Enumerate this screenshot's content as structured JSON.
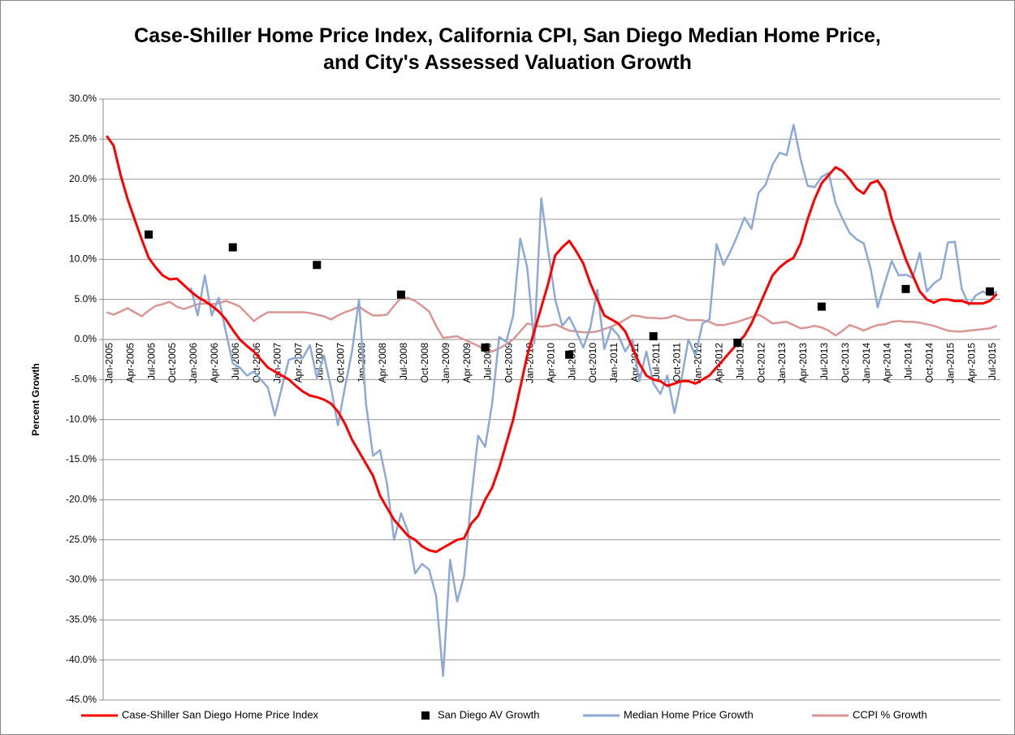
{
  "chart_data": {
    "type": "line",
    "title": "Case-Shiller Home Price Index, California CPI, San Diego Median Home Price, and City's Assessed Valuation Growth",
    "ylabel": "Percent Growth",
    "categories": [
      "Jan-2005",
      null,
      null,
      "Apr-2005",
      null,
      null,
      "Jul-2005",
      null,
      null,
      "Oct-2005",
      null,
      null,
      "Jan-2006",
      null,
      null,
      "Apr-2006",
      null,
      null,
      "Jul-2006",
      null,
      null,
      "Oct-2006",
      null,
      null,
      "Jan-2007",
      null,
      null,
      "Apr-2007",
      null,
      null,
      "Jul-2007",
      null,
      null,
      "Oct-2007",
      null,
      null,
      "Jan-2008",
      null,
      null,
      "Apr-2008",
      null,
      null,
      "Jul-2008",
      null,
      null,
      "Oct-2008",
      null,
      null,
      "Jan-2009",
      null,
      null,
      "Apr-2009",
      null,
      null,
      "Jul-2009",
      null,
      null,
      "Oct-2009",
      null,
      null,
      "Jan-2010",
      null,
      null,
      "Apr-2010",
      null,
      null,
      "Jul-2010",
      null,
      null,
      "Oct-2010",
      null,
      null,
      "Jan-2011",
      null,
      null,
      "Apr-2011",
      null,
      null,
      "Jul-2011",
      null,
      null,
      "Oct-2011",
      null,
      null,
      "Jan-2012",
      null,
      null,
      "Apr-2012",
      null,
      null,
      "Jul-2012",
      null,
      null,
      "Oct-2012",
      null,
      null,
      "Jan-2013",
      null,
      null,
      "Apr-2013",
      null,
      null,
      "Jul-2013",
      null,
      null,
      "Oct-2013",
      null,
      null,
      "Jan-2014",
      null,
      null,
      "Apr-2014",
      null,
      null,
      "Jul-2014",
      null,
      null,
      "Oct-2014",
      null,
      null,
      "Jan-2015",
      null,
      null,
      "Apr-2015",
      null,
      null,
      "Jul-2015",
      null
    ],
    "series": [
      {
        "name": "Case-Shiller San Diego Home Price Index",
        "color": "#ff0000",
        "kind": "line",
        "values": [
          25.4,
          24.2,
          20.5,
          17.5,
          15,
          12.5,
          10.2,
          9,
          8,
          7.5,
          7.6,
          6.8,
          6,
          5.3,
          4.8,
          4.2,
          3.5,
          2.5,
          1.2,
          0,
          -0.8,
          -1.5,
          -2.5,
          -3.5,
          -4,
          -4.5,
          -5,
          -5.8,
          -6.5,
          -7,
          -7.2,
          -7.5,
          -8,
          -9,
          -10.5,
          -12.5,
          -14,
          -15.5,
          -17,
          -19.5,
          -21,
          -22.5,
          -23.5,
          -24.5,
          -25,
          -25.8,
          -26.3,
          -26.5,
          -26,
          -25.5,
          -25,
          -24.8,
          -23,
          -22,
          -20,
          -18.5,
          -16,
          -13,
          -10,
          -6,
          -2,
          1,
          4,
          7,
          10.5,
          11.5,
          12.3,
          11,
          9.5,
          7,
          5,
          3,
          2.5,
          2,
          1,
          -1,
          -3,
          -4.5,
          -5,
          -5.2,
          -5.8,
          -5.5,
          -5.2,
          -5.2,
          -5.5,
          -5,
          -4.5,
          -3.5,
          -2.5,
          -1.5,
          -0.5,
          0.5,
          2,
          4,
          6,
          8,
          9,
          9.7,
          10.2,
          12,
          15,
          17.5,
          19.5,
          20.5,
          21.5,
          21,
          20,
          18.8,
          18.2,
          19.5,
          19.8,
          18.5,
          15,
          12.5,
          10,
          8,
          6,
          5,
          4.6,
          5,
          5,
          4.8,
          4.8,
          4.5,
          4.5,
          4.5,
          4.8,
          5.7
        ]
      },
      {
        "name": "San Diego AV Growth",
        "color": "#000000",
        "kind": "scatter",
        "values": [
          null,
          null,
          null,
          null,
          null,
          null,
          13.1,
          null,
          null,
          null,
          null,
          null,
          null,
          null,
          null,
          null,
          null,
          null,
          11.5,
          null,
          null,
          null,
          null,
          null,
          null,
          null,
          null,
          null,
          null,
          null,
          9.3,
          null,
          null,
          null,
          null,
          null,
          null,
          null,
          null,
          null,
          null,
          null,
          5.6,
          null,
          null,
          null,
          null,
          null,
          null,
          null,
          null,
          null,
          null,
          null,
          -1,
          null,
          null,
          null,
          null,
          null,
          null,
          null,
          null,
          null,
          null,
          null,
          -1.9,
          null,
          null,
          null,
          null,
          null,
          null,
          null,
          null,
          null,
          null,
          null,
          0.4,
          null,
          null,
          null,
          null,
          null,
          null,
          null,
          null,
          null,
          null,
          null,
          -0.4,
          null,
          null,
          null,
          null,
          null,
          null,
          null,
          null,
          null,
          null,
          null,
          4.1,
          null,
          null,
          null,
          null,
          null,
          null,
          null,
          null,
          null,
          null,
          null,
          6.3,
          null,
          null,
          null,
          null,
          null,
          null,
          null,
          null,
          null,
          null,
          null,
          6,
          null
        ]
      },
      {
        "name": "Median Home Price Growth",
        "color": "#8eaad4",
        "kind": "line",
        "values": [
          null,
          null,
          null,
          null,
          null,
          null,
          null,
          null,
          null,
          null,
          null,
          null,
          6.5,
          3,
          8,
          3,
          5.2,
          1,
          -3,
          -3.5,
          -4.5,
          -4,
          -5,
          -6,
          -9.5,
          -6,
          -2.5,
          -2.3,
          -2.3,
          -0.7,
          -4.8,
          -2,
          -6,
          -10.7,
          -6,
          -1.5,
          5,
          -8,
          -14.5,
          -13.8,
          -18,
          -25,
          -21.7,
          -24,
          -29.2,
          -28,
          -28.7,
          -32,
          -42,
          -27.5,
          -32.7,
          -29.5,
          -20,
          -12,
          -13.4,
          -8,
          0.3,
          -0.3,
          3,
          12.6,
          9,
          -0.5,
          17.6,
          11,
          5,
          1.7,
          2.8,
          1,
          -1,
          1.5,
          6.2,
          -1.2,
          1.5,
          0.5,
          -1.5,
          0,
          -5.2,
          -1.5,
          -5.5,
          -6.8,
          -4.5,
          -9.2,
          -5,
          0,
          -2,
          2,
          2.5,
          11.9,
          9.3,
          11,
          13,
          15.2,
          13.8,
          18.3,
          19.3,
          21.8,
          23.3,
          23,
          26.8,
          22.5,
          19.2,
          19,
          20.3,
          20.8,
          17,
          15,
          13.3,
          12.5,
          12,
          8.8,
          4,
          7,
          9.8,
          8,
          8.1,
          7.7,
          10.8,
          6,
          7,
          7.6,
          12.1,
          12.2,
          6.3,
          4.3,
          5.5,
          6,
          5.5,
          6
        ]
      },
      {
        "name": "CCPI % Growth",
        "color": "#d99694",
        "kind": "line",
        "values": [
          3.4,
          3.1,
          3.5,
          3.9,
          3.4,
          2.9,
          3.6,
          4.2,
          4.4,
          4.7,
          4.1,
          3.8,
          4.1,
          4.4,
          4.5,
          4.4,
          4.5,
          4.8,
          4.5,
          4.1,
          3.2,
          2.3,
          2.9,
          3.4,
          3.4,
          3.4,
          3.4,
          3.4,
          3.4,
          3.3,
          3.1,
          2.9,
          2.5,
          3,
          3.4,
          3.7,
          4.1,
          3.5,
          3,
          3,
          3.1,
          4.2,
          5.2,
          5.2,
          4.8,
          4.2,
          3.5,
          1.7,
          0.2,
          0.3,
          0.4,
          0,
          -0.4,
          -0.8,
          -1.3,
          -1.5,
          -1.1,
          -0.6,
          0,
          1,
          2,
          1.8,
          1.6,
          1.7,
          1.9,
          1.5,
          1.1,
          1,
          0.9,
          0.9,
          1,
          1.3,
          1.6,
          2,
          2.5,
          3,
          2.9,
          2.7,
          2.7,
          2.6,
          2.7,
          3,
          2.7,
          2.4,
          2.4,
          2.4,
          2.2,
          1.8,
          1.8,
          2,
          2.2,
          2.5,
          2.8,
          3.1,
          2.6,
          2,
          2.1,
          2.2,
          1.8,
          1.4,
          1.5,
          1.7,
          1.5,
          1.1,
          0.5,
          1.1,
          1.8,
          1.5,
          1.1,
          1.5,
          1.8,
          1.9,
          2.2,
          2.3,
          2.2,
          2.2,
          2.1,
          1.9,
          1.7,
          1.4,
          1.1,
          1,
          1,
          1.1,
          1.2,
          1.3,
          1.4,
          1.7
        ]
      }
    ],
    "ylim": [
      -45,
      30
    ],
    "yticks": [
      {
        "value": 30,
        "label": "30.0%"
      },
      {
        "value": 25,
        "label": "25.0%"
      },
      {
        "value": 20,
        "label": "20.0%"
      },
      {
        "value": 15,
        "label": "15.0%"
      },
      {
        "value": 10,
        "label": "10.0%"
      },
      {
        "value": 5,
        "label": "5.0%"
      },
      {
        "value": 0,
        "label": "0.0%"
      },
      {
        "value": -5,
        "label": "-5.0%"
      },
      {
        "value": -10,
        "label": "-10.0%"
      },
      {
        "value": -15,
        "label": "-15.0%"
      },
      {
        "value": -20,
        "label": "-20.0%"
      },
      {
        "value": -25,
        "label": "-25.0%"
      },
      {
        "value": -30,
        "label": "-30.0%"
      },
      {
        "value": -35,
        "label": "-35.0%"
      },
      {
        "value": -40,
        "label": "-40.0%"
      },
      {
        "value": -45,
        "label": "-45.0%"
      }
    ],
    "grid": true,
    "legend": "bottom"
  }
}
